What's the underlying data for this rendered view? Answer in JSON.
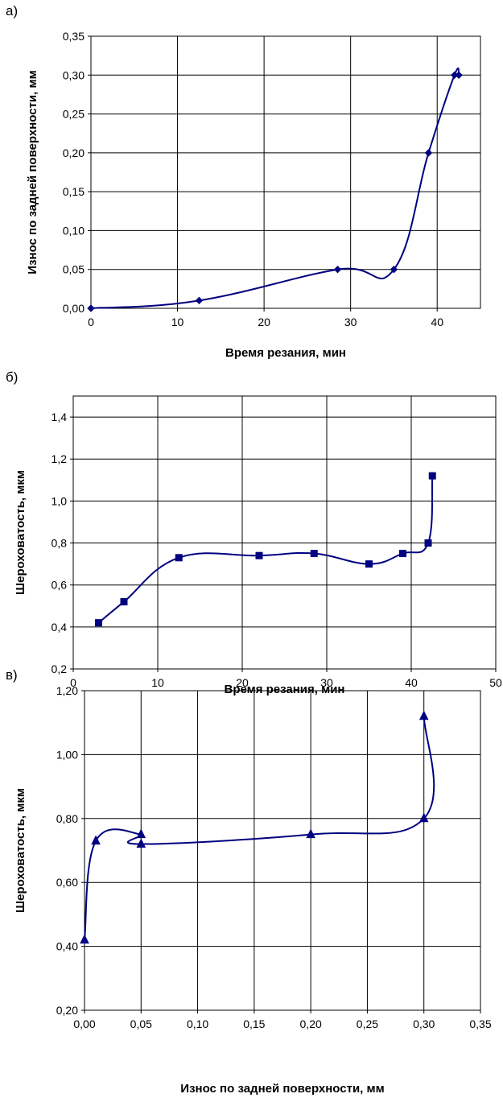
{
  "chart_data": [
    {
      "panel_label": "а)",
      "type": "line",
      "title": "",
      "xlabel": "Время резания, мин",
      "ylabel": "Износ по задней поверхности, мм",
      "xlim": [
        0,
        45
      ],
      "ylim": [
        0,
        0.35
      ],
      "x_ticks": [
        "0",
        "10",
        "20",
        "30",
        "40"
      ],
      "y_ticks": [
        "0,00",
        "0,05",
        "0,10",
        "0,15",
        "0,20",
        "0,25",
        "0,30",
        "0,35"
      ],
      "grid": true,
      "marker": "diamond",
      "color": "#000080",
      "series": [
        {
          "x": [
            0,
            12.5,
            28.5,
            35,
            39,
            42,
            42.5
          ],
          "y": [
            0,
            0.01,
            0.05,
            0.05,
            0.2,
            0.3,
            0.3
          ]
        }
      ]
    },
    {
      "panel_label": "б)",
      "type": "line",
      "title": "",
      "xlabel": "Время резания, мин",
      "ylabel": "Шероховатость, мкм",
      "xlim": [
        0,
        50
      ],
      "ylim": [
        0.2,
        1.5
      ],
      "x_ticks": [
        "0",
        "10",
        "20",
        "30",
        "40",
        "50"
      ],
      "y_ticks": [
        "0,2",
        "0,4",
        "0,6",
        "0,8",
        "1,0",
        "1,2",
        "1,4"
      ],
      "grid": true,
      "marker": "square",
      "color": "#000080",
      "series": [
        {
          "x": [
            3,
            6,
            12.5,
            22,
            28.5,
            35,
            39,
            42,
            42.5
          ],
          "y": [
            0.42,
            0.52,
            0.73,
            0.74,
            0.75,
            0.7,
            0.75,
            0.8,
            1.12
          ]
        }
      ]
    },
    {
      "panel_label": "в)",
      "type": "line",
      "title": "",
      "xlabel": "Износ по задней поверхности, мм",
      "ylabel": "Шероховатость, мкм",
      "xlim": [
        0,
        0.35
      ],
      "ylim": [
        0.2,
        1.2
      ],
      "x_ticks": [
        "0,00",
        "0,05",
        "0,10",
        "0,15",
        "0,20",
        "0,25",
        "0,30",
        "0,35"
      ],
      "y_ticks": [
        "0,20",
        "0,40",
        "0,60",
        "0,80",
        "1,00",
        "1,20"
      ],
      "grid": true,
      "marker": "triangle",
      "color": "#000080",
      "series": [
        {
          "x": [
            0,
            0.01,
            0.05,
            0.05,
            0.2,
            0.3,
            0.3
          ],
          "y": [
            0.42,
            0.73,
            0.75,
            0.72,
            0.75,
            0.8,
            1.12
          ]
        }
      ]
    }
  ]
}
